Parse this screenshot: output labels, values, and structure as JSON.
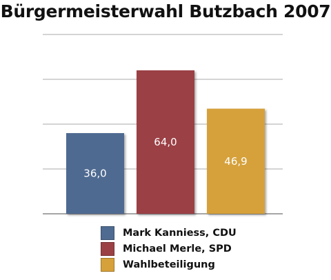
{
  "chart_data": {
    "type": "bar",
    "title": "Bürgermeisterwahl Butzbach 2007",
    "xlabel": "",
    "ylabel": "",
    "ylim": [
      0,
      80
    ],
    "grid": true,
    "legend_position": "bottom",
    "series": [
      {
        "name": "Mark Kanniess, CDU",
        "value": 36.0,
        "label": "36,0",
        "color": "#4f6b91"
      },
      {
        "name": "Michael Merle, SPD",
        "value": 64.0,
        "label": "64,0",
        "color": "#9b4145"
      },
      {
        "name": "Wahlbeteiligung",
        "value": 46.9,
        "label": "46,9",
        "color": "#d6a13a"
      }
    ]
  }
}
